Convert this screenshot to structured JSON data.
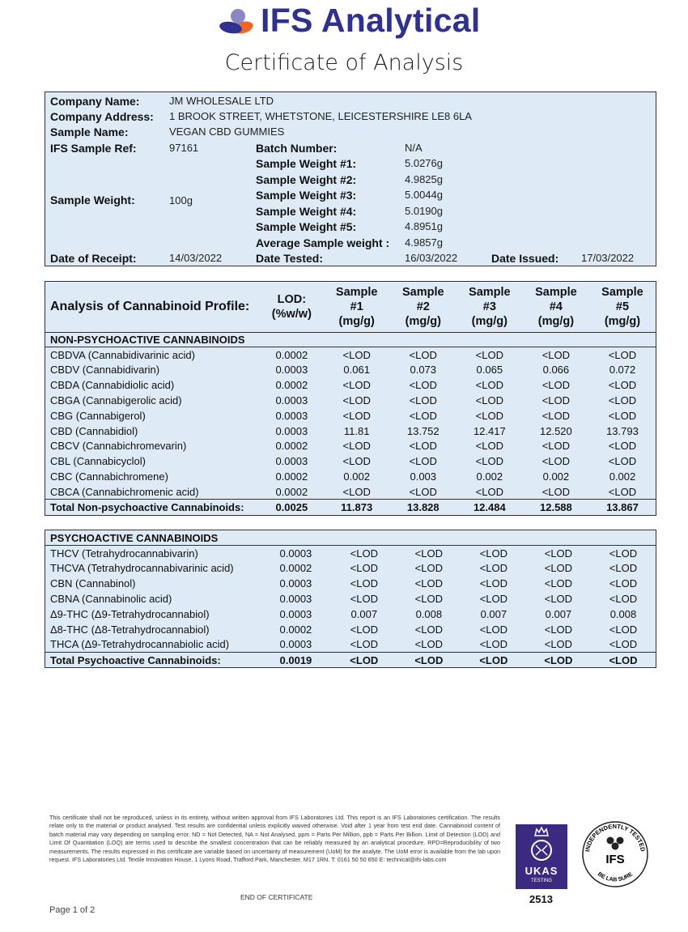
{
  "header": {
    "brand": "IFS Analytical",
    "title": "Certificate of Analysis",
    "logo_colors": {
      "primary": "#2e3192",
      "accent": "#f26522",
      "light": "#8a87c4"
    }
  },
  "info": {
    "company_name_label": "Company Name:",
    "company_name": "JM WHOLESALE LTD",
    "company_address_label": "Company Address:",
    "company_address": "1 BROOK STREET, WHETSTONE, LEICESTERSHIRE LE8 6LA",
    "sample_name_label": "Sample Name:",
    "sample_name": "VEGAN CBD GUMMIES",
    "ifs_ref_label": "IFS Sample Ref:",
    "ifs_ref": "97161",
    "batch_label": "Batch Number:",
    "batch": "N/A",
    "sample_weight_label": "Sample Weight:",
    "sample_weight": "100g",
    "weights": [
      {
        "label": "Sample Weight #1:",
        "value": "5.0276g"
      },
      {
        "label": "Sample Weight #2:",
        "value": "4.9825g"
      },
      {
        "label": "Sample Weight #3:",
        "value": "5.0044g"
      },
      {
        "label": "Sample Weight #4:",
        "value": "5.0190g"
      },
      {
        "label": "Sample Weight #5:",
        "value": "4.8951g"
      },
      {
        "label": "Average Sample weight :",
        "value": "4.9857g"
      }
    ],
    "receipt_label": "Date of Receipt:",
    "receipt": "14/03/2022",
    "tested_label": "Date Tested:",
    "tested": "16/03/2022",
    "issued_label": "Date Issued:",
    "issued": "17/03/2022"
  },
  "cannabinoid": {
    "headers": [
      "Analysis of Cannabinoid Profile:",
      "LOD:\n(%w/w)",
      "Sample\n#1\n(mg/g)",
      "Sample\n#2\n(mg/g)",
      "Sample\n#3\n(mg/g)",
      "Sample\n#4\n(mg/g)",
      "Sample\n#5\n(mg/g)"
    ],
    "section": "NON-PSYCHOACTIVE CANNABINOIDS",
    "rows": [
      [
        "CBDVA (Cannabidivarinic acid)",
        "0.0002",
        "<LOD",
        "<LOD",
        "<LOD",
        "<LOD",
        "<LOD"
      ],
      [
        "CBDV (Cannabidivarin)",
        "0.0003",
        "0.061",
        "0.073",
        "0.065",
        "0.066",
        "0.072"
      ],
      [
        "CBDA (Cannabidiolic acid)",
        "0.0002",
        "<LOD",
        "<LOD",
        "<LOD",
        "<LOD",
        "<LOD"
      ],
      [
        "CBGA (Cannabigerolic acid)",
        "0.0003",
        "<LOD",
        "<LOD",
        "<LOD",
        "<LOD",
        "<LOD"
      ],
      [
        "CBG (Cannabigerol)",
        "0.0003",
        "<LOD",
        "<LOD",
        "<LOD",
        "<LOD",
        "<LOD"
      ],
      [
        "CBD (Cannabidiol)",
        "0.0003",
        "11.81",
        "13.752",
        "12.417",
        "12.520",
        "13.793"
      ],
      [
        "CBCV (Cannabichromevarin)",
        "0.0002",
        "<LOD",
        "<LOD",
        "<LOD",
        "<LOD",
        "<LOD"
      ],
      [
        "CBL (Cannabicyclol)",
        "0.0003",
        "<LOD",
        "<LOD",
        "<LOD",
        "<LOD",
        "<LOD"
      ],
      [
        "CBC (Cannabichromene)",
        "0.0002",
        "0.002",
        "0.003",
        "0.002",
        "0.002",
        "0.002"
      ],
      [
        "CBCA (Cannabichromenic acid)",
        "0.0002",
        "<LOD",
        "<LOD",
        "<LOD",
        "<LOD",
        "<LOD"
      ]
    ],
    "total": [
      "Total Non-psychoactive Cannabinoids:",
      "0.0025",
      "11.873",
      "13.828",
      "12.484",
      "12.588",
      "13.867"
    ]
  },
  "psychoactive": {
    "section": "PSYCHOACTIVE CANNABINOIDS",
    "rows": [
      [
        "THCV (Tetrahydrocannabivarin)",
        "0.0003",
        "<LOD",
        "<LOD",
        "<LOD",
        "<LOD",
        "<LOD"
      ],
      [
        "THCVA (Tetrahydrocannabivarinic acid)",
        "0.0002",
        "<LOD",
        "<LOD",
        "<LOD",
        "<LOD",
        "<LOD"
      ],
      [
        "CBN (Cannabinol)",
        "0.0003",
        "<LOD",
        "<LOD",
        "<LOD",
        "<LOD",
        "<LOD"
      ],
      [
        "CBNA (Cannabinolic acid)",
        "0.0003",
        "<LOD",
        "<LOD",
        "<LOD",
        "<LOD",
        "<LOD"
      ],
      [
        "Δ9-THC (Δ9-Tetrahydrocannabiol)",
        "0.0003",
        "0.007",
        "0.008",
        "0.007",
        "0.007",
        "0.008"
      ],
      [
        "Δ8-THC (Δ8-Tetrahydrocannabiol)",
        "0.0002",
        "<LOD",
        "<LOD",
        "<LOD",
        "<LOD",
        "<LOD"
      ],
      [
        "THCA (Δ9-Tetrahydrocannabiolic acid)",
        "0.0003",
        "<LOD",
        "<LOD",
        "<LOD",
        "<LOD",
        "<LOD"
      ]
    ],
    "total": [
      "Total Psychoactive Cannabinoids:",
      "0.0019",
      "<LOD",
      "<LOD",
      "<LOD",
      "<LOD",
      "<LOD"
    ]
  },
  "footer": {
    "disclaimer": "This certificate shall not be reproduced, unless in its entirety, without written approval from IFS Laboratories Ltd. This report is an IFS Laboratories certification. The results relate only to the material or product analysed. Test results are confidential unless explicitly waived otherwise. Void after 1 year from test end date. Cannabinoid content of batch material may vary depending on sampling error. ND = Not Detected, NA = Not Analysed, ppm = Parts Per Million, ppb = Parts Per Billion. Limit of Detection (LOD) and Limit Of Quantitation (LOQ) are terms used to describe the smallest concentration that can be reliably measured by an analytical procedure. RPD=Reproducibility of two measurements. The results expressed in this certificate are variable based on uncertainty of measurement (UoM) for the analyte. The UoM error is available from the lab upon request. IFS Laboratories Ltd. Textile Innovation House, 1 Lyons Road, Trafford Park, Manchester, M17 1RN. T: 0161 50 50 650 E: ",
    "email": "technical@ifs-labs.com",
    "end": "END OF CERTIFICATE",
    "page": "Page 1 of 2",
    "ukas": {
      "name": "UKAS",
      "sub": "TESTING",
      "number": "2513"
    },
    "seal": {
      "top": "INDEPENDENTLY TESTED",
      "center": "IFS",
      "bottom": "BE LAB SURE"
    }
  }
}
